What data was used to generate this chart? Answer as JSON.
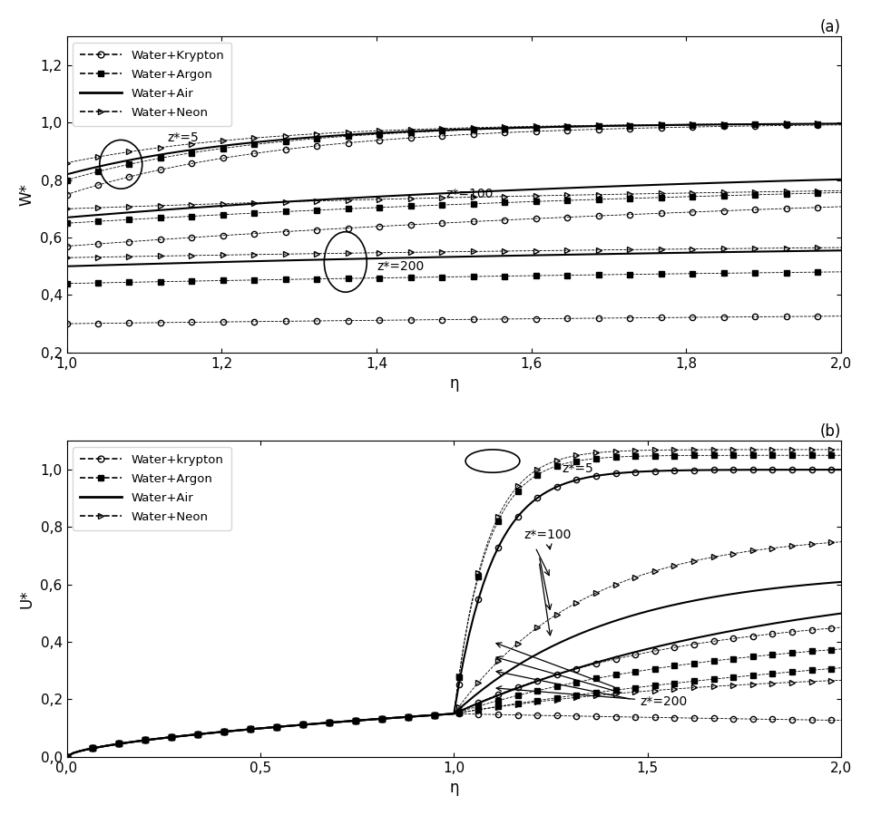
{
  "panel_a": {
    "title": "(a)",
    "xlabel": "η",
    "ylabel": "W*",
    "xlim": [
      1.0,
      2.0
    ],
    "ylim": [
      0.2,
      1.3
    ],
    "xticks": [
      1.0,
      1.2,
      1.4,
      1.6,
      1.8,
      2.0
    ],
    "yticks": [
      0.2,
      0.4,
      0.6,
      0.8,
      1.0,
      1.2
    ],
    "legend_entries": [
      "Water+Krypton",
      "Water+Argon",
      "Water+Air",
      "Water+Neon"
    ]
  },
  "panel_b": {
    "title": "(b)",
    "xlabel": "η",
    "ylabel": "U*",
    "xlim": [
      0.0,
      2.0
    ],
    "ylim": [
      0.0,
      1.1
    ],
    "xticks": [
      0.0,
      0.5,
      1.0,
      1.5,
      2.0
    ],
    "yticks": [
      0.0,
      0.2,
      0.4,
      0.6,
      0.8,
      1.0
    ],
    "legend_entries": [
      "Water+krypton",
      "Water+Argon",
      "Water+Air",
      "Water+Neon"
    ]
  },
  "background": "#ffffff",
  "linewidth": 1.5,
  "markersize": 4.5
}
